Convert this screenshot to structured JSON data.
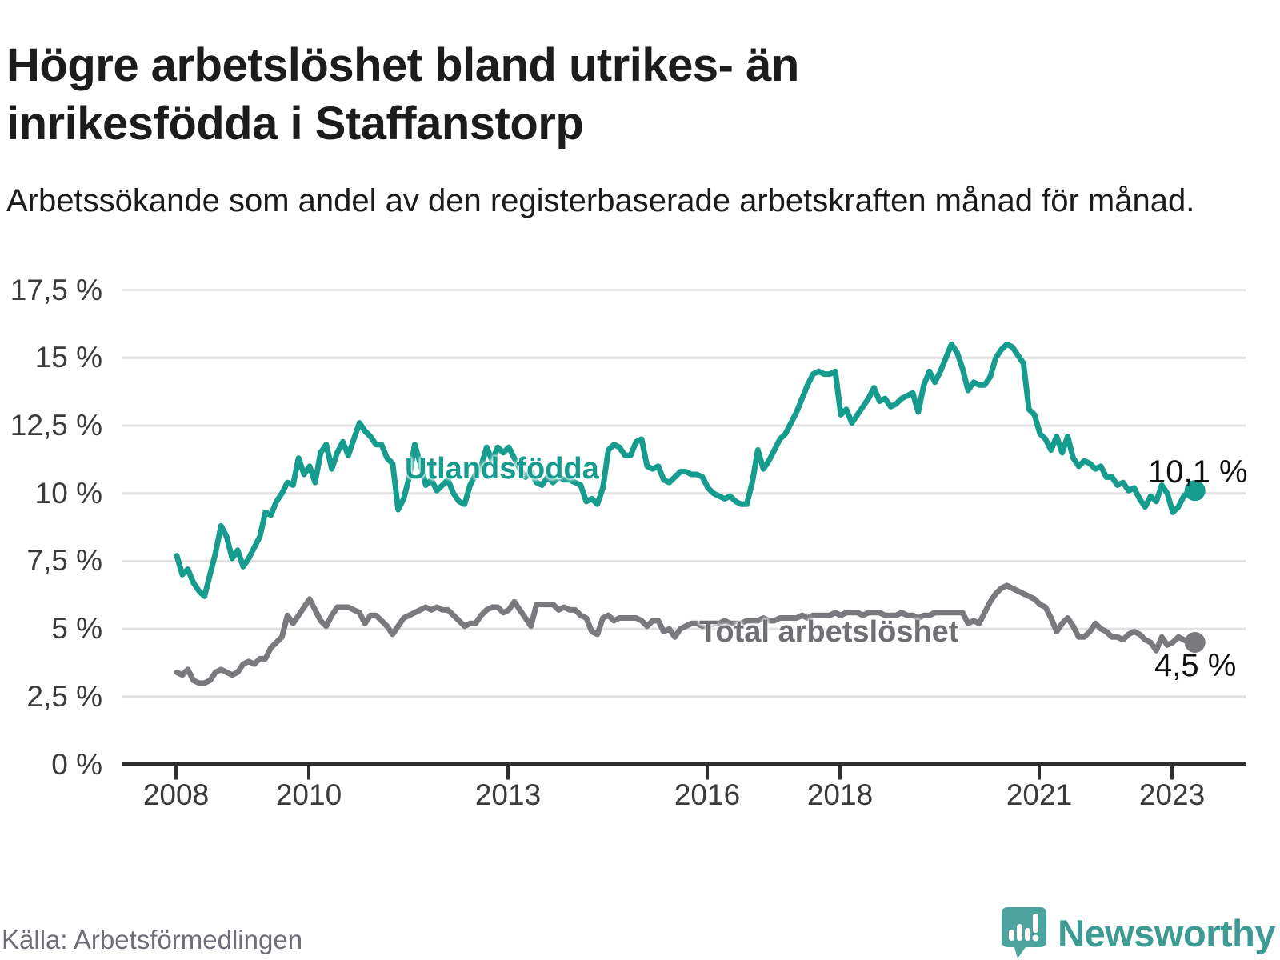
{
  "header": {
    "title": "Högre arbetslöshet bland utrikes- än inrikesfödda i Staffanstorp",
    "subtitle": "Arbetssökande som andel av den registerbaserade arbetskraften månad för månad."
  },
  "footer": {
    "source": "Källa: Arbetsförmedlingen",
    "brand": "Newsworthy"
  },
  "colors": {
    "teal_line": "#169C8E",
    "gray_line": "#7A7A7E",
    "gridline": "#E1E1E1",
    "axis": "#2F2F2F",
    "tick_label": "#3B3B3B",
    "logo_pin": "#4DA49E"
  },
  "chart_data": {
    "type": "line",
    "title": "Högre arbetslöshet bland utrikes- än inrikesfödda i Staffanstorp",
    "subtitle": "Arbetssökande som andel av den registerbaserade arbetskraften månad för månad.",
    "x_start_year": 2008,
    "x_interval": "monthly",
    "x_end": "2023-05",
    "grid": true,
    "y_axis": {
      "unit": "%",
      "range": [
        0,
        17.5
      ],
      "tick_values": [
        17.5,
        15,
        12.5,
        10,
        7.5,
        5,
        2.5,
        0
      ],
      "tick_labels": [
        "17,5 %",
        "15 %",
        "12,5 %",
        "10 %",
        "7,5 %",
        "5 %",
        "2,5 %",
        "0 %"
      ]
    },
    "x_axis": {
      "tick_years": [
        2008,
        2010,
        2013,
        2016,
        2018,
        2021,
        2023
      ],
      "tick_labels": [
        "2008",
        "2010",
        "2013",
        "2016",
        "2018",
        "2021",
        "2023"
      ]
    },
    "series": [
      {
        "name": "Utlandsfödda",
        "color": "#169C8E",
        "end_label": "10,1 %",
        "end_value": 10.1,
        "values": [
          7.7,
          7.0,
          7.2,
          6.7,
          6.4,
          6.2,
          7.0,
          7.8,
          8.8,
          8.4,
          7.6,
          7.9,
          7.3,
          7.6,
          8.0,
          8.4,
          9.3,
          9.2,
          9.7,
          10.0,
          10.4,
          10.3,
          11.3,
          10.7,
          11.0,
          10.4,
          11.5,
          11.8,
          10.9,
          11.5,
          11.9,
          11.4,
          12.0,
          12.6,
          12.3,
          12.1,
          11.8,
          11.8,
          11.3,
          11.1,
          9.4,
          9.8,
          10.6,
          11.8,
          11.1,
          10.3,
          10.5,
          10.1,
          10.3,
          10.5,
          10.0,
          9.7,
          9.6,
          10.3,
          10.7,
          11.0,
          11.7,
          11.2,
          11.7,
          11.5,
          11.7,
          11.3,
          10.9,
          10.6,
          10.8,
          10.4,
          10.3,
          10.6,
          10.4,
          10.6,
          10.5,
          10.5,
          10.4,
          10.3,
          9.7,
          9.8,
          9.6,
          10.2,
          11.6,
          11.8,
          11.7,
          11.4,
          11.4,
          11.9,
          12.0,
          11.0,
          10.9,
          11.0,
          10.5,
          10.4,
          10.6,
          10.8,
          10.8,
          10.7,
          10.7,
          10.6,
          10.2,
          10.0,
          9.9,
          9.8,
          9.9,
          9.7,
          9.6,
          9.6,
          10.4,
          11.6,
          10.9,
          11.2,
          11.6,
          12.0,
          12.2,
          12.6,
          13.0,
          13.5,
          14.0,
          14.4,
          14.5,
          14.4,
          14.4,
          14.5,
          12.9,
          13.1,
          12.6,
          12.9,
          13.2,
          13.5,
          13.9,
          13.4,
          13.5,
          13.2,
          13.3,
          13.5,
          13.6,
          13.7,
          13.0,
          14.0,
          14.5,
          14.1,
          14.5,
          15.0,
          15.5,
          15.2,
          14.6,
          13.8,
          14.1,
          14.0,
          14.0,
          14.3,
          15.0,
          15.3,
          15.5,
          15.4,
          15.1,
          14.8,
          13.1,
          12.9,
          12.2,
          12.0,
          11.6,
          12.1,
          11.5,
          12.1,
          11.3,
          11.0,
          11.2,
          11.1,
          10.9,
          11.0,
          10.6,
          10.6,
          10.3,
          10.4,
          10.1,
          10.2,
          9.8,
          9.5,
          9.9,
          9.7,
          10.3,
          10.0,
          9.3,
          9.5,
          9.9,
          10.1,
          10.1
        ]
      },
      {
        "name": "Total arbetslöshet",
        "color": "#7A7A7E",
        "end_label": "4,5 %",
        "end_value": 4.5,
        "values": [
          3.4,
          3.3,
          3.5,
          3.1,
          3.0,
          3.0,
          3.1,
          3.4,
          3.5,
          3.4,
          3.3,
          3.4,
          3.7,
          3.8,
          3.7,
          3.9,
          3.9,
          4.3,
          4.5,
          4.7,
          5.5,
          5.2,
          5.5,
          5.8,
          6.1,
          5.7,
          5.3,
          5.1,
          5.5,
          5.8,
          5.8,
          5.8,
          5.7,
          5.6,
          5.2,
          5.5,
          5.5,
          5.3,
          5.1,
          4.8,
          5.1,
          5.4,
          5.5,
          5.6,
          5.7,
          5.8,
          5.7,
          5.8,
          5.7,
          5.7,
          5.5,
          5.3,
          5.1,
          5.2,
          5.2,
          5.5,
          5.7,
          5.8,
          5.8,
          5.6,
          5.7,
          6.0,
          5.7,
          5.4,
          5.1,
          5.9,
          5.9,
          5.9,
          5.9,
          5.7,
          5.8,
          5.7,
          5.7,
          5.5,
          5.4,
          4.9,
          4.8,
          5.4,
          5.5,
          5.3,
          5.4,
          5.4,
          5.4,
          5.4,
          5.3,
          5.1,
          5.3,
          5.3,
          4.9,
          5.0,
          4.7,
          5.0,
          5.1,
          5.2,
          5.2,
          5.1,
          5.1,
          5.2,
          5.2,
          5.3,
          5.2,
          5.2,
          5.2,
          5.3,
          5.3,
          5.3,
          5.4,
          5.3,
          5.3,
          5.4,
          5.4,
          5.4,
          5.4,
          5.5,
          5.4,
          5.5,
          5.5,
          5.5,
          5.5,
          5.6,
          5.5,
          5.6,
          5.6,
          5.6,
          5.5,
          5.6,
          5.6,
          5.6,
          5.5,
          5.5,
          5.5,
          5.6,
          5.5,
          5.5,
          5.4,
          5.5,
          5.5,
          5.6,
          5.6,
          5.6,
          5.6,
          5.6,
          5.6,
          5.2,
          5.3,
          5.2,
          5.6,
          6.0,
          6.3,
          6.5,
          6.6,
          6.5,
          6.4,
          6.3,
          6.2,
          6.1,
          5.9,
          5.8,
          5.4,
          4.9,
          5.2,
          5.4,
          5.1,
          4.7,
          4.7,
          4.9,
          5.2,
          5.0,
          4.9,
          4.7,
          4.7,
          4.6,
          4.8,
          4.9,
          4.8,
          4.6,
          4.5,
          4.2,
          4.7,
          4.4,
          4.5,
          4.7,
          4.6,
          4.5,
          4.5
        ]
      }
    ]
  }
}
